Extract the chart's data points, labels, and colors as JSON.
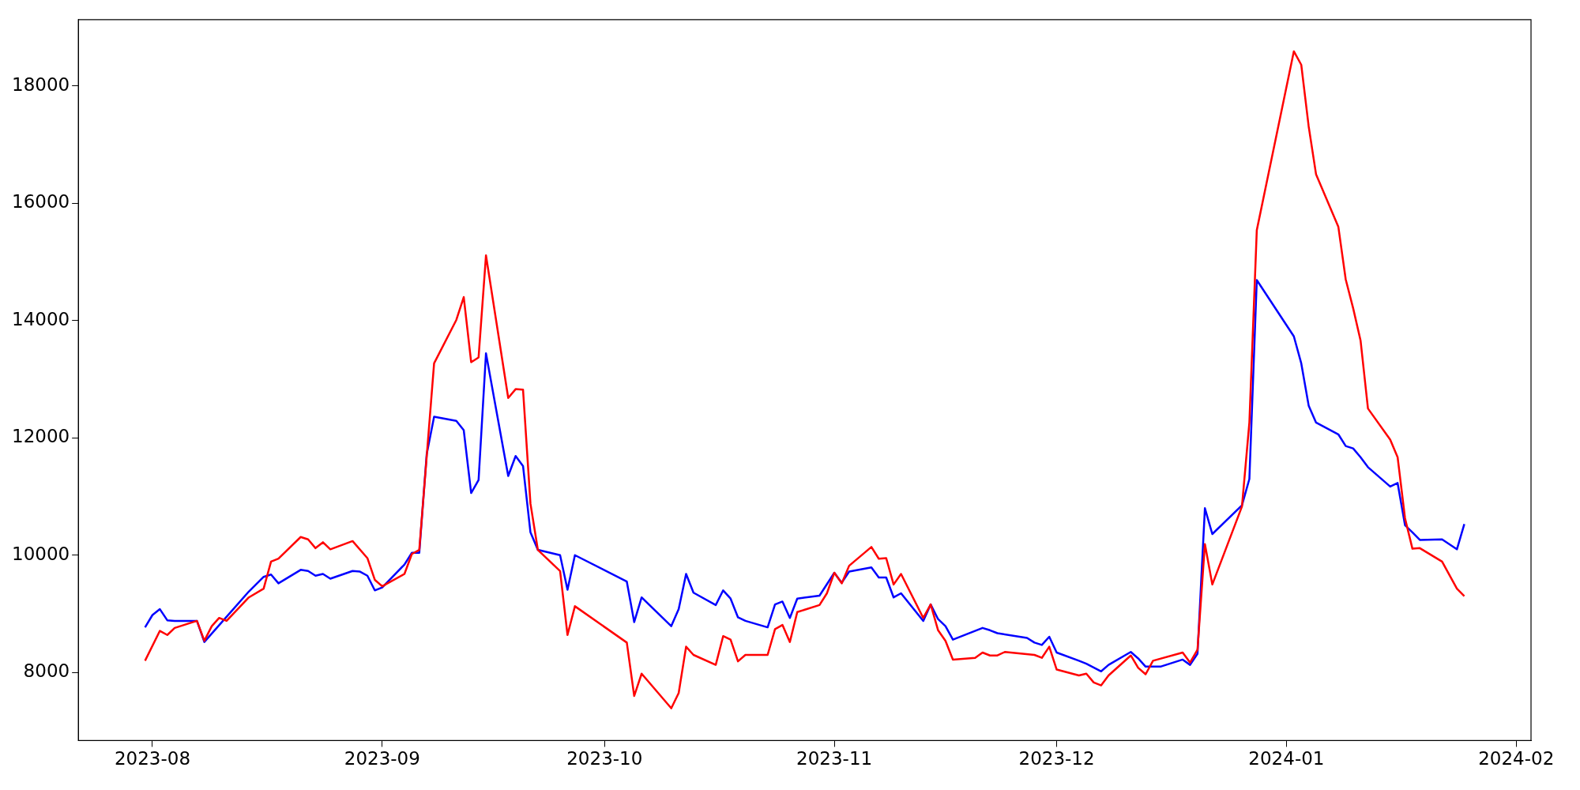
{
  "chart_data": {
    "type": "line",
    "xlim": [
      "2023-07-22",
      "2024-02-03"
    ],
    "xticks": [
      "2023-08",
      "2023-09",
      "2023-10",
      "2023-11",
      "2023-12",
      "2024-01",
      "2024-02"
    ],
    "ylim": [
      6840,
      19130
    ],
    "yticks": [
      8000,
      10000,
      12000,
      14000,
      16000,
      18000
    ],
    "series": [
      {
        "color": "#ff0000",
        "x": [
          "2023-07-31",
          "2023-08-02",
          "2023-08-03",
          "2023-08-04",
          "2023-08-07",
          "2023-08-08",
          "2023-08-09",
          "2023-08-10",
          "2023-08-11",
          "2023-08-14",
          "2023-08-16",
          "2023-08-17",
          "2023-08-18",
          "2023-08-21",
          "2023-08-22",
          "2023-08-23",
          "2023-08-24",
          "2023-08-25",
          "2023-08-28",
          "2023-08-30",
          "2023-08-31",
          "2023-09-01",
          "2023-09-04",
          "2023-09-05",
          "2023-09-06",
          "2023-09-08",
          "2023-09-11",
          "2023-09-12",
          "2023-09-13",
          "2023-09-14",
          "2023-09-15",
          "2023-09-18",
          "2023-09-19",
          "2023-09-20",
          "2023-09-21",
          "2023-09-22",
          "2023-09-25",
          "2023-09-26",
          "2023-09-27",
          "2023-10-04",
          "2023-10-05",
          "2023-10-06",
          "2023-10-10",
          "2023-10-11",
          "2023-10-12",
          "2023-10-13",
          "2023-10-16",
          "2023-10-17",
          "2023-10-18",
          "2023-10-19",
          "2023-10-20",
          "2023-10-23",
          "2023-10-24",
          "2023-10-25",
          "2023-10-26",
          "2023-10-27",
          "2023-10-30",
          "2023-10-31",
          "2023-11-01",
          "2023-11-02",
          "2023-11-03",
          "2023-11-06",
          "2023-11-07",
          "2023-11-08",
          "2023-11-09",
          "2023-11-10",
          "2023-11-13",
          "2023-11-14",
          "2023-11-15",
          "2023-11-16",
          "2023-11-17",
          "2023-11-20",
          "2023-11-21",
          "2023-11-22",
          "2023-11-23",
          "2023-11-24",
          "2023-11-28",
          "2023-11-29",
          "2023-11-30",
          "2023-12-01",
          "2023-12-04",
          "2023-12-05",
          "2023-12-06",
          "2023-12-07",
          "2023-12-08",
          "2023-12-11",
          "2023-12-12",
          "2023-12-13",
          "2023-12-14",
          "2023-12-18",
          "2023-12-19",
          "2023-12-20",
          "2023-12-21",
          "2023-12-22",
          "2023-12-26",
          "2023-12-27",
          "2023-12-28",
          "2024-01-02",
          "2024-01-03",
          "2024-01-04",
          "2024-01-05",
          "2024-01-08",
          "2024-01-09",
          "2024-01-10",
          "2024-01-11",
          "2024-01-12",
          "2024-01-15",
          "2024-01-16",
          "2024-01-17",
          "2024-01-18",
          "2024-01-19",
          "2024-01-22",
          "2024-01-24",
          "2024-01-25"
        ],
        "values": [
          8200,
          8710,
          8640,
          8760,
          8880,
          8540,
          8790,
          8930,
          8880,
          9280,
          9430,
          9890,
          9940,
          10310,
          10270,
          10120,
          10220,
          10100,
          10240,
          9950,
          9580,
          9470,
          9680,
          10020,
          10090,
          13270,
          14010,
          14400,
          13290,
          13370,
          15110,
          12680,
          12830,
          12820,
          10880,
          10090,
          9730,
          8640,
          9130,
          8510,
          7600,
          7980,
          7390,
          7650,
          8440,
          8300,
          8130,
          8620,
          8560,
          8190,
          8300,
          8300,
          8740,
          8810,
          8520,
          9030,
          9150,
          9350,
          9700,
          9520,
          9820,
          10140,
          9940,
          9950,
          9500,
          9680,
          8930,
          9160,
          8720,
          8540,
          8220,
          8250,
          8340,
          8290,
          8290,
          8350,
          8300,
          8250,
          8440,
          8050,
          7950,
          7980,
          7830,
          7780,
          7950,
          8290,
          8080,
          7970,
          8200,
          8340,
          8170,
          8390,
          10190,
          9500,
          10830,
          12260,
          15540,
          18590,
          18360,
          17310,
          16490,
          15600,
          14700,
          14210,
          13660,
          12500,
          11970,
          11670,
          10630,
          10110,
          10120,
          9890,
          9430,
          9300
        ]
      },
      {
        "color": "#0000ff",
        "x": [
          "2023-07-31",
          "2023-08-01",
          "2023-08-02",
          "2023-08-03",
          "2023-08-04",
          "2023-08-07",
          "2023-08-08",
          "2023-08-14",
          "2023-08-16",
          "2023-08-17",
          "2023-08-18",
          "2023-08-21",
          "2023-08-22",
          "2023-08-23",
          "2023-08-24",
          "2023-08-25",
          "2023-08-28",
          "2023-08-29",
          "2023-08-30",
          "2023-08-31",
          "2023-09-01",
          "2023-09-04",
          "2023-09-05",
          "2023-09-06",
          "2023-09-07",
          "2023-09-08",
          "2023-09-11",
          "2023-09-12",
          "2023-09-13",
          "2023-09-14",
          "2023-09-15",
          "2023-09-18",
          "2023-09-19",
          "2023-09-20",
          "2023-09-21",
          "2023-09-22",
          "2023-09-25",
          "2023-09-26",
          "2023-09-27",
          "2023-10-04",
          "2023-10-05",
          "2023-10-06",
          "2023-10-10",
          "2023-10-11",
          "2023-10-12",
          "2023-10-13",
          "2023-10-16",
          "2023-10-17",
          "2023-10-18",
          "2023-10-19",
          "2023-10-20",
          "2023-10-23",
          "2023-10-24",
          "2023-10-25",
          "2023-10-26",
          "2023-10-27",
          "2023-10-30",
          "2023-11-01",
          "2023-11-02",
          "2023-11-03",
          "2023-11-06",
          "2023-11-07",
          "2023-11-08",
          "2023-11-09",
          "2023-11-10",
          "2023-11-13",
          "2023-11-14",
          "2023-11-15",
          "2023-11-16",
          "2023-11-17",
          "2023-11-21",
          "2023-11-22",
          "2023-11-23",
          "2023-11-27",
          "2023-11-28",
          "2023-11-29",
          "2023-11-30",
          "2023-12-01",
          "2023-12-04",
          "2023-12-05",
          "2023-12-07",
          "2023-12-08",
          "2023-12-11",
          "2023-12-12",
          "2023-12-13",
          "2023-12-15",
          "2023-12-18",
          "2023-12-19",
          "2023-12-20",
          "2023-12-21",
          "2023-12-22",
          "2023-12-26",
          "2023-12-27",
          "2023-12-28",
          "2024-01-02",
          "2024-01-03",
          "2024-01-04",
          "2024-01-05",
          "2024-01-08",
          "2024-01-09",
          "2024-01-10",
          "2024-01-11",
          "2024-01-12",
          "2024-01-15",
          "2024-01-16",
          "2024-01-17",
          "2024-01-18",
          "2024-01-19",
          "2024-01-22",
          "2024-01-24",
          "2024-01-25"
        ],
        "values": [
          8770,
          8980,
          9080,
          8890,
          8880,
          8880,
          8520,
          9380,
          9630,
          9670,
          9520,
          9750,
          9730,
          9650,
          9680,
          9600,
          9730,
          9720,
          9650,
          9400,
          9450,
          9840,
          10040,
          10040,
          11720,
          12360,
          12290,
          12130,
          11060,
          11280,
          13440,
          11350,
          11690,
          11520,
          10390,
          10090,
          10000,
          9410,
          10000,
          9550,
          8860,
          9280,
          8790,
          9080,
          9680,
          9360,
          9150,
          9400,
          9260,
          8940,
          8880,
          8770,
          9160,
          9210,
          8930,
          9260,
          9310,
          9700,
          9530,
          9720,
          9790,
          9620,
          9620,
          9280,
          9350,
          8880,
          9160,
          8910,
          8790,
          8560,
          8760,
          8720,
          8670,
          8590,
          8510,
          8470,
          8610,
          8340,
          8200,
          8150,
          8020,
          8130,
          8350,
          8240,
          8100,
          8100,
          8220,
          8130,
          8320,
          10800,
          10360,
          10850,
          11300,
          14690,
          13730,
          13270,
          12550,
          12260,
          12060,
          11860,
          11820,
          11670,
          11500,
          11170,
          11230,
          10510,
          10390,
          10260,
          10270,
          10100,
          10530
        ]
      }
    ]
  }
}
